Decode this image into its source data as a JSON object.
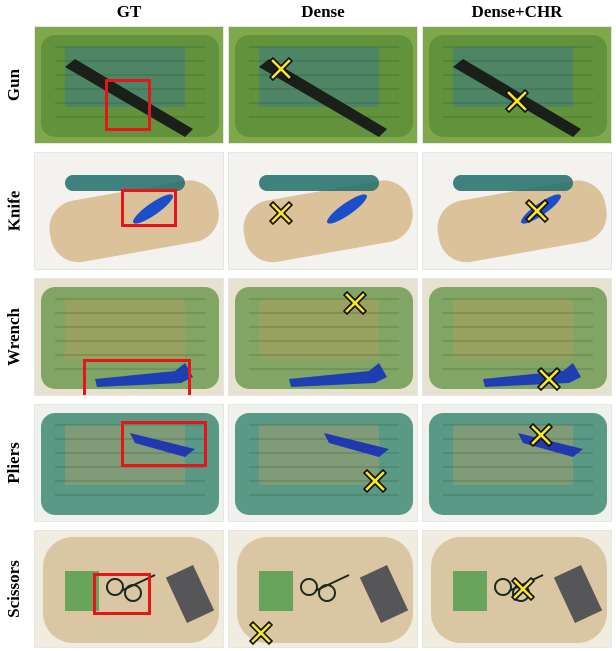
{
  "columns": [
    "GT",
    "Dense",
    "Dense+CHR"
  ],
  "rows": [
    {
      "label": "Gun",
      "bg": "#7fa84a",
      "body": "#5d8f3a",
      "item": "#1a1f1a",
      "accent": "#2b6fb2"
    },
    {
      "label": "Knife",
      "bg": "#f4f2ee",
      "body": "#c99a55",
      "item": "#1b4fc9",
      "accent": "#1f6d6a"
    },
    {
      "label": "Wrench",
      "bg": "#e6e2cf",
      "body": "#6f9a52",
      "item": "#1e3fb3",
      "accent": "#c49b57"
    },
    {
      "label": "Pliers",
      "bg": "#eef1ec",
      "body": "#3f8a73",
      "item": "#2238b0",
      "accent": "#c7a15e"
    },
    {
      "label": "Scissors",
      "bg": "#f1ece0",
      "body": "#bf9a56",
      "item": "#1a2a20",
      "accent": "#4c9b4c"
    }
  ],
  "colors": {
    "gt_box": "#e8141c",
    "marker_fill": "#f7e52a",
    "marker_stroke": "#111111"
  }
}
